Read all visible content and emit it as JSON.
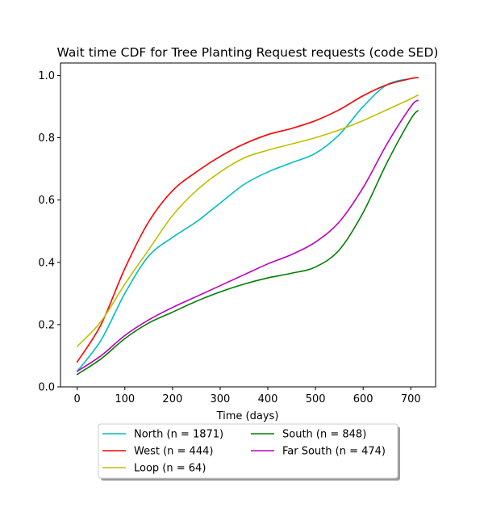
{
  "chart_data": {
    "type": "line",
    "title": "Wait time CDF for Tree Planting Request  requests (code SED)",
    "xlabel": "Time (days)",
    "ylabel": "",
    "xlim": [
      -35,
      752
    ],
    "ylim": [
      0,
      1.04
    ],
    "xticks": [
      0,
      100,
      200,
      300,
      400,
      500,
      600,
      700
    ],
    "yticks": [
      0.0,
      0.2,
      0.4,
      0.6,
      0.8,
      1.0
    ],
    "xtick_labels": [
      "0",
      "100",
      "200",
      "300",
      "400",
      "500",
      "600",
      "700"
    ],
    "ytick_labels": [
      "0.0",
      "0.2",
      "0.4",
      "0.6",
      "0.8",
      "1.0"
    ],
    "grid": false,
    "legend_position": "below",
    "x": [
      0,
      50,
      100,
      150,
      200,
      250,
      300,
      350,
      400,
      450,
      500,
      550,
      600,
      650,
      700,
      715
    ],
    "series": [
      {
        "name": "North (n = 1871)",
        "color": "#00bfbf",
        "values": [
          0.05,
          0.15,
          0.3,
          0.42,
          0.48,
          0.53,
          0.59,
          0.65,
          0.69,
          0.72,
          0.75,
          0.81,
          0.9,
          0.97,
          0.99,
          0.993
        ]
      },
      {
        "name": "West (n = 444)",
        "color": "#ff0000",
        "values": [
          0.08,
          0.2,
          0.38,
          0.53,
          0.63,
          0.69,
          0.74,
          0.78,
          0.81,
          0.83,
          0.855,
          0.89,
          0.935,
          0.97,
          0.99,
          0.993
        ]
      },
      {
        "name": "Loop (n = 64)",
        "color": "#bfbf00",
        "values": [
          0.13,
          0.21,
          0.33,
          0.44,
          0.55,
          0.63,
          0.69,
          0.735,
          0.76,
          0.78,
          0.8,
          0.825,
          0.855,
          0.89,
          0.925,
          0.937
        ]
      },
      {
        "name": "South (n = 848)",
        "color": "#008000",
        "values": [
          0.04,
          0.09,
          0.155,
          0.205,
          0.24,
          0.275,
          0.305,
          0.33,
          0.35,
          0.365,
          0.385,
          0.44,
          0.56,
          0.72,
          0.86,
          0.887
        ]
      },
      {
        "name": "Far South (n = 474)",
        "color": "#bf00bf",
        "values": [
          0.05,
          0.1,
          0.165,
          0.215,
          0.255,
          0.29,
          0.325,
          0.36,
          0.395,
          0.425,
          0.465,
          0.53,
          0.64,
          0.78,
          0.9,
          0.92
        ]
      }
    ]
  }
}
